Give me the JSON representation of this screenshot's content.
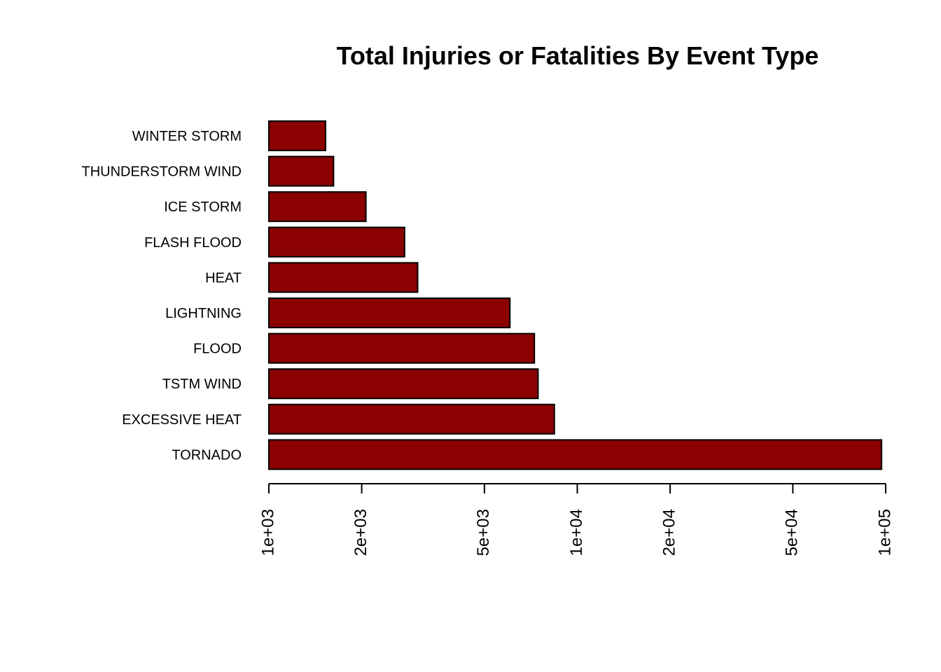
{
  "chart_data": {
    "type": "bar",
    "orientation": "horizontal",
    "title": "Total Injuries or Fatalities By Event Type",
    "xlabel": "",
    "ylabel": "",
    "x_scale": "log10",
    "xlim": [
      1000,
      100000
    ],
    "x_ticks": [
      1000,
      2000,
      5000,
      10000,
      20000,
      50000,
      100000
    ],
    "x_tick_labels": [
      "1e+03",
      "2e+03",
      "5e+03",
      "1e+04",
      "2e+04",
      "5e+04",
      "1e+05"
    ],
    "categories": [
      "WINTER STORM",
      "THUNDERSTORM WIND",
      "ICE STORM",
      "FLASH FLOOD",
      "HEAT",
      "LIGHTNING",
      "FLOOD",
      "TSTM WIND",
      "EXCESSIVE HEAT",
      "TORNADO"
    ],
    "values": [
      1527,
      1621,
      2064,
      2755,
      3037,
      6046,
      7259,
      7461,
      8428,
      96979
    ],
    "bar_color": "#8B0000",
    "grid": false,
    "legend": "none"
  }
}
